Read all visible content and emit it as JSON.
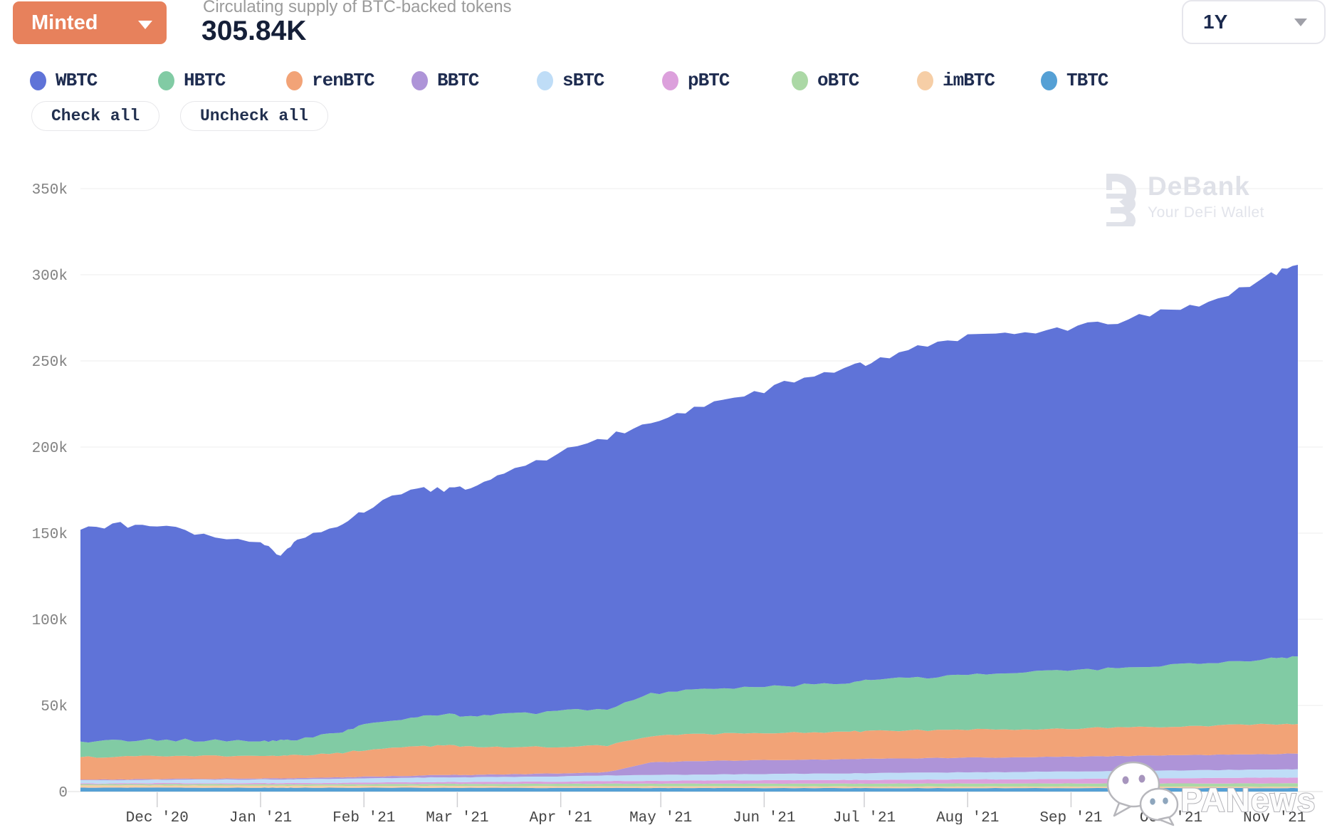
{
  "header": {
    "metric_selector": {
      "label": "Minted"
    },
    "subtitle": "Circulating supply of BTC-backed tokens",
    "total_value": "305.84K",
    "range_selector": {
      "value": "1Y"
    }
  },
  "legend": {
    "items": [
      "WBTC",
      "HBTC",
      "renBTC",
      "BBTC",
      "sBTC",
      "pBTC",
      "oBTC",
      "imBTC",
      "TBTC"
    ]
  },
  "actions": {
    "check_all": "Check all",
    "uncheck_all": "Uncheck all"
  },
  "watermarks": {
    "debank": {
      "title": "DeBank",
      "subtitle": "Your DeFi Wallet"
    },
    "panews": "PANews"
  },
  "chart_data": {
    "type": "area",
    "stacked": true,
    "title": "Circulating supply of BTC-backed tokens",
    "total_label": "305.84K",
    "value_unit": "k (thousand BTC)",
    "grid": true,
    "legend_position": "top",
    "ylim": [
      0,
      350
    ],
    "x_days": [
      0,
      12,
      23,
      37,
      54,
      60,
      65,
      77,
      85,
      99,
      109,
      117,
      127,
      143,
      158,
      171,
      184,
      199,
      214,
      229,
      237,
      251,
      266,
      280,
      296,
      311,
      327,
      341,
      357,
      365
    ],
    "series": [
      {
        "name": "TBTC",
        "color": "#55A0D5",
        "values": [
          2.3,
          2.3,
          2.3,
          2.25,
          2.25,
          2.2,
          2.2,
          2.2,
          2.2,
          2.2,
          2.2,
          2.15,
          2.15,
          2.1,
          2.1,
          2.1,
          2.05,
          2.05,
          2,
          2,
          2,
          2,
          2,
          2,
          2,
          2,
          2,
          2,
          2,
          2
        ]
      },
      {
        "name": "imBTC",
        "color": "#F6CEA6",
        "values": [
          1.3,
          1.3,
          1.3,
          1.25,
          1.2,
          1.2,
          1.2,
          1.15,
          1.1,
          1.1,
          1.1,
          1.05,
          1,
          1,
          1,
          1,
          0.95,
          0.95,
          0.9,
          0.9,
          0.9,
          0.9,
          0.85,
          0.85,
          0.85,
          0.8,
          0.8,
          0.8,
          0.8,
          0.8
        ]
      },
      {
        "name": "oBTC",
        "color": "#ABD8A5",
        "values": [
          0.7,
          0.7,
          0.75,
          0.8,
          0.8,
          0.8,
          0.85,
          0.9,
          1,
          1.1,
          1.2,
          1.2,
          1.3,
          1.4,
          1.5,
          1.5,
          1.6,
          1.6,
          1.7,
          1.7,
          1.7,
          1.75,
          1.8,
          1.8,
          1.85,
          1.9,
          1.9,
          1.95,
          2,
          2
        ]
      },
      {
        "name": "pBTC",
        "color": "#DCA0DC",
        "values": [
          0.5,
          0.5,
          0.55,
          0.6,
          0.7,
          0.7,
          0.75,
          0.8,
          0.9,
          1,
          1.1,
          1.1,
          1.2,
          1.3,
          1.5,
          1.6,
          1.8,
          1.9,
          2,
          2.1,
          2.2,
          2.3,
          2.4,
          2.5,
          2.7,
          2.8,
          3,
          3.1,
          3.3,
          3.4
        ]
      },
      {
        "name": "sBTC",
        "color": "#BFDDF7",
        "values": [
          1.8,
          1.85,
          1.9,
          2,
          2.1,
          2.1,
          2.2,
          2.3,
          2.4,
          2.6,
          2.7,
          2.8,
          2.9,
          3,
          3.2,
          3.3,
          3.5,
          3.6,
          3.7,
          3.8,
          3.9,
          4,
          4.1,
          4.2,
          4.3,
          4.4,
          4.5,
          4.6,
          4.7,
          4.8
        ]
      },
      {
        "name": "BBTC",
        "color": "#AE94D8",
        "values": [
          0.4,
          0.4,
          0.45,
          0.5,
          0.6,
          0.6,
          0.7,
          0.8,
          1,
          1.2,
          1.3,
          1.4,
          1.5,
          1.7,
          2,
          7.5,
          7.8,
          8,
          8.1,
          8.2,
          8.3,
          8.4,
          8.5,
          8.5,
          8.6,
          8.7,
          8.8,
          8.9,
          9,
          9
        ]
      },
      {
        "name": "renBTC",
        "color": "#F2A377",
        "values": [
          13,
          13.2,
          13.5,
          13.2,
          13,
          12.8,
          13.2,
          14,
          15.5,
          16.8,
          17.2,
          16.5,
          16,
          15.5,
          15.3,
          15.2,
          15.5,
          15.8,
          15.8,
          16,
          16,
          16.2,
          16.2,
          16.3,
          16.4,
          16.5,
          16.8,
          17,
          17.2,
          17.2
        ]
      },
      {
        "name": "HBTC",
        "color": "#81CBA4",
        "values": [
          9,
          9.2,
          9.3,
          9.2,
          9,
          9,
          9.5,
          12,
          14.5,
          17,
          18,
          17.5,
          18.5,
          20.5,
          21.5,
          24.5,
          25.5,
          26.5,
          27.5,
          28.5,
          29.5,
          30.5,
          31.5,
          32.5,
          33.5,
          34.5,
          35.5,
          36.5,
          38,
          39.2
        ]
      },
      {
        "name": "WBTC",
        "color": "#5F73D8",
        "values": [
          123,
          125.6,
          124,
          119.2,
          114.4,
          108.6,
          115.4,
          119.9,
          124.4,
          133,
          130.2,
          133.3,
          140.5,
          149.5,
          157.9,
          157.3,
          163.3,
          168.6,
          177.3,
          182.8,
          184.5,
          192,
          196.7,
          197.4,
          198.8,
          201.4,
          206.7,
          210.2,
          223,
          227.4
        ]
      }
    ],
    "y_ticks": [
      {
        "value": 0,
        "label": "0"
      },
      {
        "value": 50,
        "label": "50k"
      },
      {
        "value": 100,
        "label": "100k"
      },
      {
        "value": 150,
        "label": "150k"
      },
      {
        "value": 200,
        "label": "200k"
      },
      {
        "value": 250,
        "label": "250k"
      },
      {
        "value": 300,
        "label": "300k"
      },
      {
        "value": 350,
        "label": "350k"
      }
    ],
    "x_ticks": [
      {
        "day": 23,
        "label": "Dec '20"
      },
      {
        "day": 54,
        "label": "Jan '21"
      },
      {
        "day": 85,
        "label": "Feb '21"
      },
      {
        "day": 113,
        "label": "Mar '21"
      },
      {
        "day": 144,
        "label": "Apr '21"
      },
      {
        "day": 174,
        "label": "May '21"
      },
      {
        "day": 205,
        "label": "Jun '21"
      },
      {
        "day": 235,
        "label": "Jul '21"
      },
      {
        "day": 266,
        "label": "Aug '21"
      },
      {
        "day": 297,
        "label": "Sep '21"
      },
      {
        "day": 327,
        "label": "Oct '21"
      },
      {
        "day": 358,
        "label": "Nov '21"
      }
    ]
  }
}
